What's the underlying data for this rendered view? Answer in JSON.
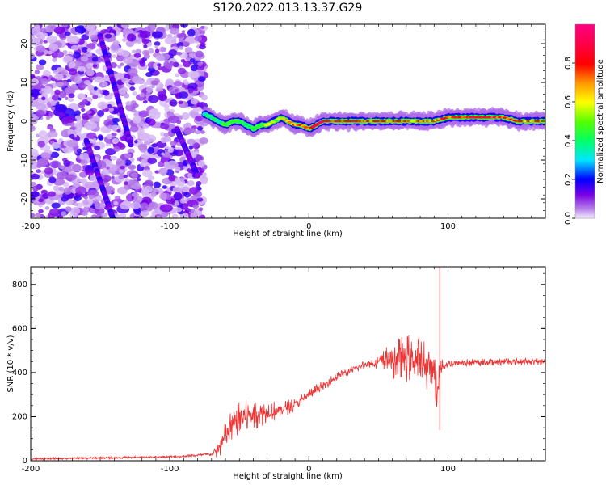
{
  "title": "S120.2022.013.13.37.G29",
  "chart_data": [
    {
      "type": "heatmap",
      "name": "spectrogram",
      "xlabel": "Height of straight line (km)",
      "ylabel": "Frequency (Hz)",
      "xlim": [
        -200,
        170
      ],
      "ylim": [
        -25,
        25
      ],
      "xticks": [
        -200,
        -100,
        0,
        100
      ],
      "yticks": [
        -20,
        -10,
        0,
        10,
        20
      ],
      "noise_region_x": [
        -200,
        -75
      ],
      "signal_track": {
        "x": [
          -75,
          -70,
          -65,
          -60,
          -55,
          -50,
          -45,
          -40,
          -35,
          -30,
          -25,
          -20,
          -15,
          -10,
          -5,
          0,
          10,
          20,
          30,
          40,
          50,
          60,
          70,
          80,
          90,
          100,
          110,
          120,
          130,
          140,
          150,
          160,
          170
        ],
        "frequency": [
          2,
          1,
          0,
          -1,
          0,
          0,
          -1,
          -2,
          -1,
          -1,
          0,
          1,
          0,
          -1,
          -1,
          -2,
          0,
          0,
          0,
          0,
          0,
          0,
          0,
          0,
          0,
          1,
          1,
          1,
          1,
          1,
          0,
          0,
          0
        ],
        "amplitude": [
          0.35,
          0.45,
          0.4,
          0.5,
          0.55,
          0.5,
          0.45,
          0.45,
          0.55,
          0.6,
          0.65,
          0.7,
          0.75,
          0.85,
          0.9,
          0.95,
          1.0,
          0.95,
          1.0,
          0.95,
          0.9,
          0.85,
          0.8,
          0.85,
          0.8,
          0.9,
          0.95,
          1.0,
          0.95,
          0.9,
          0.85,
          0.85,
          0.8
        ]
      },
      "colorbar": {
        "label": "Normalized spectral amplitude",
        "range": [
          0.0,
          1.0
        ],
        "ticks": [
          0.0,
          0.2,
          0.4,
          0.6,
          0.8
        ],
        "tick_labels": [
          "0.0",
          "0.2",
          "0.4",
          "0.6",
          "0.8"
        ],
        "stops": [
          [
            0.0,
            "#f2e8ff"
          ],
          [
            0.05,
            "#b47ce8"
          ],
          [
            0.12,
            "#7a00e6"
          ],
          [
            0.2,
            "#0000ff"
          ],
          [
            0.3,
            "#00e6ff"
          ],
          [
            0.4,
            "#00ff66"
          ],
          [
            0.5,
            "#55ff00"
          ],
          [
            0.6,
            "#ffff00"
          ],
          [
            0.7,
            "#ff9900"
          ],
          [
            0.8,
            "#ff0000"
          ],
          [
            0.9,
            "#ff0044"
          ],
          [
            1.0,
            "#ff0080"
          ]
        ]
      }
    },
    {
      "type": "line",
      "name": "snr",
      "xlabel": "Height of straight line (km)",
      "ylabel": "SNR (10 * v/v)",
      "xlim": [
        -200,
        170
      ],
      "ylim": [
        0,
        880
      ],
      "xticks": [
        -200,
        -100,
        0,
        100
      ],
      "yticks": [
        0,
        200,
        400,
        600,
        800
      ],
      "color": "#ee3333",
      "series": [
        {
          "name": "SNR",
          "x": [
            -200,
            -180,
            -160,
            -140,
            -120,
            -100,
            -90,
            -80,
            -70,
            -65,
            -60,
            -55,
            -50,
            -40,
            -30,
            -20,
            -10,
            0,
            10,
            20,
            30,
            40,
            50,
            60,
            70,
            80,
            85,
            90,
            92,
            94,
            100,
            110,
            120,
            130,
            140,
            150,
            160,
            170
          ],
          "values": [
            8,
            10,
            12,
            14,
            16,
            18,
            20,
            25,
            30,
            50,
            110,
            160,
            190,
            210,
            220,
            230,
            255,
            300,
            340,
            380,
            410,
            435,
            450,
            460,
            465,
            450,
            430,
            420,
            250,
            420,
            440,
            445,
            445,
            448,
            450,
            450,
            450,
            450
          ],
          "spread": [
            5,
            5,
            5,
            5,
            6,
            6,
            6,
            6,
            8,
            40,
            70,
            80,
            80,
            70,
            55,
            40,
            30,
            25,
            25,
            22,
            20,
            20,
            30,
            90,
            110,
            120,
            110,
            60,
            200,
            40,
            20,
            18,
            18,
            18,
            18,
            18,
            18,
            18
          ],
          "spike": {
            "x": 94,
            "values": [
              880,
              140
            ]
          }
        }
      ]
    }
  ]
}
